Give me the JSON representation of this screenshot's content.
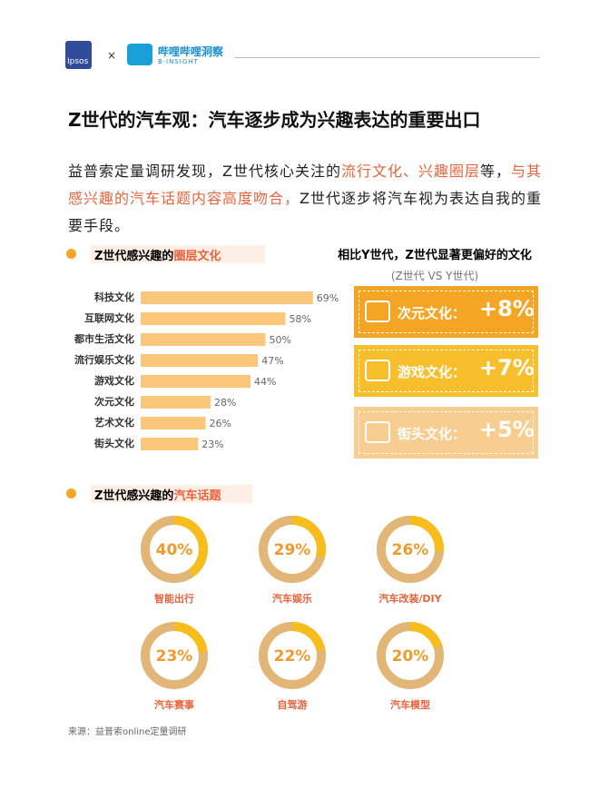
{
  "header": {
    "ipsos": "Ipsos",
    "times": "×",
    "bili": "哔哩哔哩洞察",
    "bili_sub": "B·INSIGHT"
  },
  "title": "Z世代的汽车观：汽车逐步成为兴趣表达的重要出口",
  "intro": [
    {
      "text": "益普索定量调研发现，Z世代核心关注的",
      "color": "#222222"
    },
    {
      "text": "流行文化、兴趣圈层",
      "color": "#e8643c"
    },
    {
      "text": "等，",
      "color": "#222222"
    },
    {
      "text": "与其感兴趣的汽车话题内容高度吻合，",
      "color": "#e8643c"
    },
    {
      "text": "Z世代逐步将汽车视为表达自我的重要手段。",
      "color": "#222222"
    }
  ],
  "chart_data": [
    {
      "type": "bar",
      "title": [
        "Z世代感兴趣的",
        "圈层文化"
      ],
      "orientation": "horizontal",
      "categories": [
        "科技文化",
        "互联网文化",
        "都市生活文化",
        "流行娱乐文化",
        "游戏文化",
        "次元文化",
        "艺术文化",
        "街头文化"
      ],
      "values": [
        69,
        58,
        50,
        47,
        44,
        28,
        26,
        23
      ],
      "value_labels": [
        "69%",
        "58%",
        "50%",
        "47%",
        "44%",
        "28%",
        "26%",
        "23%"
      ],
      "xlim": [
        0,
        100
      ],
      "color": "#fcc77a"
    },
    {
      "type": "donut",
      "title": [
        "Z世代感兴趣的",
        "汽车话题"
      ],
      "categories": [
        "智能出行",
        "汽车娱乐",
        "汽车改装/DIY",
        "汽车赛事",
        "自驾游",
        "汽车模型"
      ],
      "values": [
        40,
        29,
        26,
        23,
        22,
        20
      ],
      "value_labels": [
        "40%",
        "29%",
        "26%",
        "23%",
        "22%",
        "20%"
      ],
      "total": 100,
      "color": "#f7bd1c",
      "rest_color": "#e2b677"
    }
  ],
  "comparison": {
    "title": "相比Y世代，Z世代显著更偏好的文化",
    "subtitle": "(Z世代 VS Y世代)",
    "items": [
      {
        "label": "次元文化：",
        "value": "+8%",
        "color": "#f5a524"
      },
      {
        "label": "游戏文化：",
        "value": "+7%",
        "color": "#f7bf2b"
      },
      {
        "label": "街头文化：",
        "value": "+5%",
        "color": "#f8cd90"
      }
    ]
  },
  "source": "来源：益普索online定量调研"
}
